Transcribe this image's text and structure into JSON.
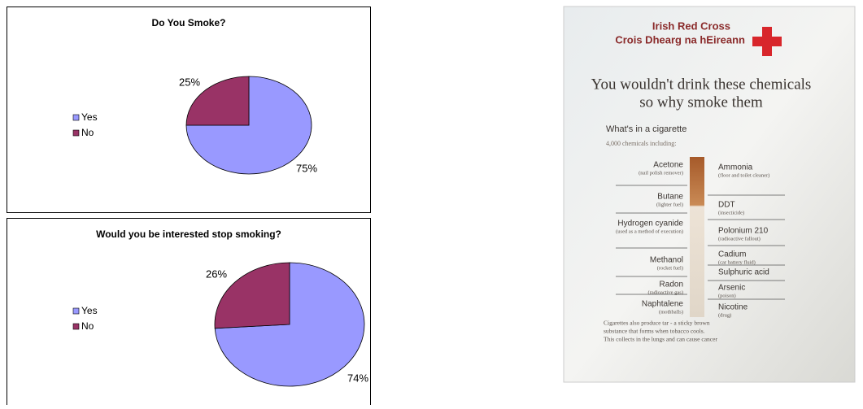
{
  "chart_data": [
    {
      "type": "pie",
      "title": "Do You Smoke?",
      "categories": [
        "Yes",
        "No"
      ],
      "values": [
        75,
        25
      ],
      "value_labels": [
        "75%",
        "25%"
      ],
      "colors": [
        "#9999ff",
        "#993366"
      ],
      "legend": "left"
    },
    {
      "type": "pie",
      "title": "Would you be interested stop smoking?",
      "categories": [
        "Yes",
        "No"
      ],
      "values": [
        74,
        26
      ],
      "value_labels": [
        "74%",
        "26%"
      ],
      "colors": [
        "#9999ff",
        "#993366"
      ],
      "legend": "left"
    }
  ],
  "poster": {
    "org": "Irish Red Cross",
    "org_irish": "Crois Dhearg na hEireann",
    "headline": [
      "You wouldn't drink these chemicals",
      "so why smoke them"
    ],
    "subhead": "What's in a cigarette",
    "intro": "4,000 chemicals including:",
    "left": [
      {
        "name": "Acetone",
        "note": "(nail polish remover)"
      },
      {
        "name": "Butane",
        "note": "(lighter fuel)"
      },
      {
        "name": "Hydrogen cyanide",
        "note": "(used as a method of execution)"
      },
      {
        "name": "Methanol",
        "note": "(rocket fuel)"
      },
      {
        "name": "Radon",
        "note": "(radioactive gas)"
      },
      {
        "name": "Naphtalene",
        "note": "(mothballs)"
      }
    ],
    "right": [
      {
        "name": "Ammonia",
        "note": "(floor and toilet cleaner)"
      },
      {
        "name": "DDT",
        "note": "(insecticide)"
      },
      {
        "name": "Polonium 210",
        "note": "(radioactive fallout)"
      },
      {
        "name": "Cadium",
        "note": "(car battery fluid)"
      },
      {
        "name": "Sulphuric acid"
      },
      {
        "name": "Arsenic",
        "note": "(poison)"
      },
      {
        "name": "Nicotine",
        "note": "(drug)"
      }
    ],
    "footer": [
      "Cigarettes also produce tar - a sticky brown",
      "substance that forms when tobacco cools.",
      "This collects in the lungs and can cause cancer"
    ]
  }
}
